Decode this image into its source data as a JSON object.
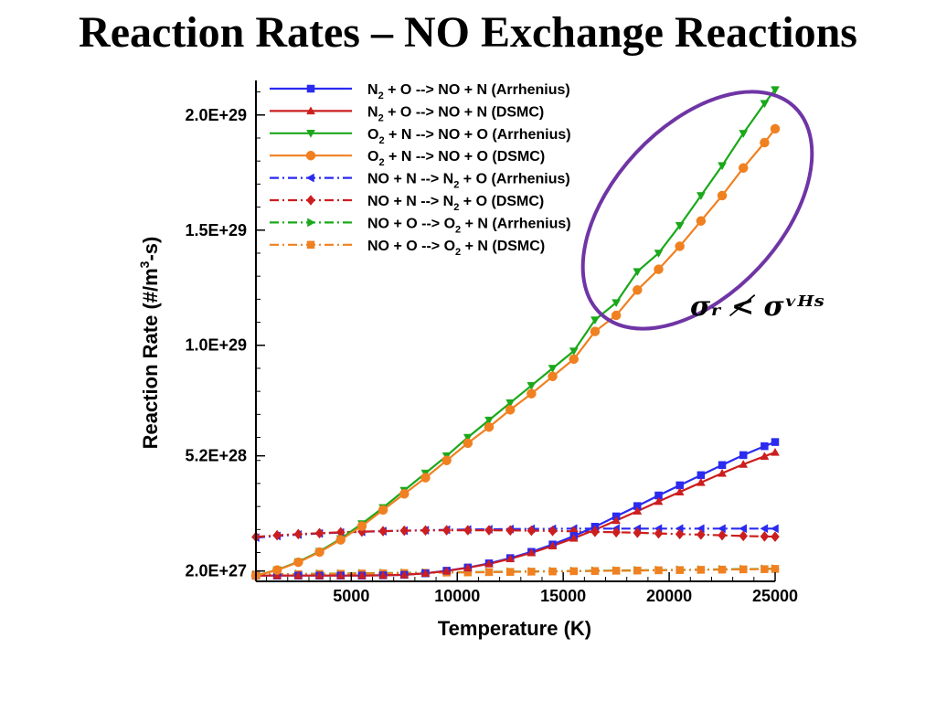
{
  "slide": {
    "title": "Reaction Rates – NO Exchange Reactions"
  },
  "annotation": {
    "text": "σᵣ ≮ σᵛᴴˢ"
  },
  "colors": {
    "highlight_ellipse": "#6f35a5"
  },
  "chart_data": {
    "type": "line",
    "xlabel": "Temperature (K)",
    "ylabel": "Reaction Rate (#/m³-s)",
    "xlim": [
      500,
      25000
    ],
    "ylim": [
      -2.5e+27,
      2.15e+29
    ],
    "x_ticks": [
      5000,
      10000,
      15000,
      20000,
      25000
    ],
    "x_tick_labels": [
      "5000",
      "10000",
      "15000",
      "20000",
      "25000"
    ],
    "y_ticks": [
      2e+27,
      5.2e+28,
      1e+29,
      1.5e+29,
      2e+29
    ],
    "y_tick_labels": [
      "2.0E+27",
      "5.2E+28",
      "1.0E+29",
      "1.5E+29",
      "2.0E+29"
    ],
    "grid": false,
    "legend_position": "top-left",
    "x": [
      500,
      1500,
      2500,
      3500,
      4500,
      5500,
      6500,
      7500,
      8500,
      9500,
      10500,
      11500,
      12500,
      13500,
      14500,
      15500,
      16500,
      17500,
      18500,
      19500,
      20500,
      21500,
      22500,
      23500,
      24500,
      25000
    ],
    "series": [
      {
        "name": "N₂ + O --> NO + N (Arrhenius)",
        "color": "#2a2af0",
        "line": "solid",
        "marker": "square",
        "values": [
          0,
          0,
          0,
          0,
          0,
          0,
          1e+26,
          3e+26,
          1e+27,
          2.1e+27,
          3.5e+27,
          5.3e+27,
          7.6e+27,
          1.03e+28,
          1.35e+28,
          1.72e+28,
          2.12e+28,
          2.57e+28,
          3.02e+28,
          3.48e+28,
          3.92e+28,
          4.36e+28,
          4.8e+28,
          5.23e+28,
          5.62e+28,
          5.8e+28
        ]
      },
      {
        "name": "N₂ + O --> NO + N (DSMC)",
        "color": "#cc1e1e",
        "line": "solid",
        "marker": "triangle-up",
        "values": [
          0,
          0,
          0,
          0,
          0,
          0,
          1e+26,
          3e+26,
          1e+27,
          2e+27,
          3.4e+27,
          5.1e+27,
          7.3e+27,
          9.9e+27,
          1.29e+28,
          1.62e+28,
          1.99e+28,
          2.39e+28,
          2.8e+28,
          3.22e+28,
          3.63e+28,
          4.04e+28,
          4.44e+28,
          4.83e+28,
          5.18e+28,
          5.35e+28
        ]
      },
      {
        "name": "O₂ + N --> NO + O (Arrhenius)",
        "color": "#1aa81a",
        "line": "solid",
        "marker": "triangle-down",
        "values": [
          0,
          2.5e+27,
          6e+27,
          1.05e+28,
          1.6e+28,
          2.25e+28,
          2.95e+28,
          3.7e+28,
          4.45e+28,
          5.2e+28,
          6e+28,
          6.75e+28,
          7.5e+28,
          8.25e+28,
          9e+28,
          9.75e+28,
          1.11e+29,
          1.185e+29,
          1.32e+29,
          1.4e+29,
          1.52e+29,
          1.65e+29,
          1.78e+29,
          1.92e+29,
          2.05e+29,
          2.11e+29
        ]
      },
      {
        "name": "O₂ + N --> NO + O (DSMC)",
        "color": "#f08020",
        "line": "solid",
        "marker": "circle",
        "values": [
          0,
          2.4e+27,
          5.8e+27,
          1.02e+28,
          1.55e+28,
          2.15e+28,
          2.85e+28,
          3.55e+28,
          4.25e+28,
          5e+28,
          5.75e+28,
          6.45e+28,
          7.2e+28,
          7.9e+28,
          8.65e+28,
          9.4e+28,
          1.06e+29,
          1.13e+29,
          1.24e+29,
          1.33e+29,
          1.43e+29,
          1.54e+29,
          1.65e+29,
          1.77e+29,
          1.88e+29,
          1.94e+29
        ]
      },
      {
        "name": "NO + N --> N₂ + O (Arrhenius)",
        "color": "#2a2af0",
        "line": "dashdot",
        "marker": "triangle-left",
        "values": [
          1.65e+28,
          1.72e+28,
          1.78e+28,
          1.83e+28,
          1.87e+28,
          1.9e+28,
          1.93e+28,
          1.95e+28,
          1.97e+28,
          1.99e+28,
          2e+28,
          2.01e+28,
          2.02e+28,
          2.03e+28,
          2.03e+28,
          2.04e+28,
          2.04e+28,
          2.04e+28,
          2.04e+28,
          2.04e+28,
          2.04e+28,
          2.04e+28,
          2.04e+28,
          2.04e+28,
          2.04e+28,
          2.04e+28
        ]
      },
      {
        "name": "NO + N --> N₂ + O (DSMC)",
        "color": "#cc1e1e",
        "line": "dashdot",
        "marker": "diamond",
        "values": [
          1.68e+28,
          1.75e+28,
          1.8e+28,
          1.84e+28,
          1.88e+28,
          1.91e+28,
          1.93e+28,
          1.95e+28,
          1.96e+28,
          1.97e+28,
          1.97e+28,
          1.97e+28,
          1.96e+28,
          1.95e+28,
          1.94e+28,
          1.92e+28,
          1.9e+28,
          1.88e+28,
          1.86e+28,
          1.83e+28,
          1.8e+28,
          1.78e+28,
          1.75e+28,
          1.72e+28,
          1.7e+28,
          1.69e+28
        ]
      },
      {
        "name": "NO + O --> O₂ + N (Arrhenius)",
        "color": "#1aa81a",
        "line": "dashdot",
        "marker": "triangle-right",
        "values": [
          5e+26,
          6e+26,
          7e+26,
          8e+26,
          9e+26,
          1e+27,
          1.1e+27,
          1.2e+27,
          1.3e+27,
          1.4e+27,
          1.5e+27,
          1.6e+27,
          1.7e+27,
          1.8e+27,
          1.9e+27,
          2e+27,
          2.1e+27,
          2.2e+27,
          2.3e+27,
          2.4e+27,
          2.5e+27,
          2.6e+27,
          2.7e+27,
          2.8e+27,
          2.9e+27,
          3e+27
        ]
      },
      {
        "name": "NO + O --> O₂ + N (DSMC)",
        "color": "#f08020",
        "line": "dashdot",
        "marker": "square",
        "values": [
          4e+26,
          5e+26,
          6e+26,
          7e+26,
          8e+26,
          9e+26,
          1e+27,
          1.1e+27,
          1.2e+27,
          1.3e+27,
          1.4e+27,
          1.5e+27,
          1.6e+27,
          1.7e+27,
          1.8e+27,
          1.9e+27,
          2e+27,
          2.1e+27,
          2.2e+27,
          2.3e+27,
          2.4e+27,
          2.5e+27,
          2.6e+27,
          2.7e+27,
          2.8e+27,
          2.9e+27
        ]
      }
    ],
    "legend_labels": [
      {
        "prefix": "N",
        "sub": "2",
        "suffix": " + O --> NO + N (Arrhenius)"
      },
      {
        "prefix": "N",
        "sub": "2",
        "suffix": " + O --> NO + N (DSMC)"
      },
      {
        "prefix": "O",
        "sub": "2",
        "suffix": " + N --> NO + O (Arrhenius)"
      },
      {
        "prefix": "O",
        "sub": "2",
        "suffix": " + N --> NO + O (DSMC)"
      },
      {
        "prefix": "NO + N --> N",
        "sub": "2",
        "suffix": " + O (Arrhenius)"
      },
      {
        "prefix": "NO + N --> N",
        "sub": "2",
        "suffix": " + O (DSMC)"
      },
      {
        "prefix": "NO + O --> O",
        "sub": "2",
        "suffix": " + N (Arrhenius)"
      },
      {
        "prefix": "NO + O --> O",
        "sub": "2",
        "suffix": " + N (DSMC)"
      }
    ]
  }
}
